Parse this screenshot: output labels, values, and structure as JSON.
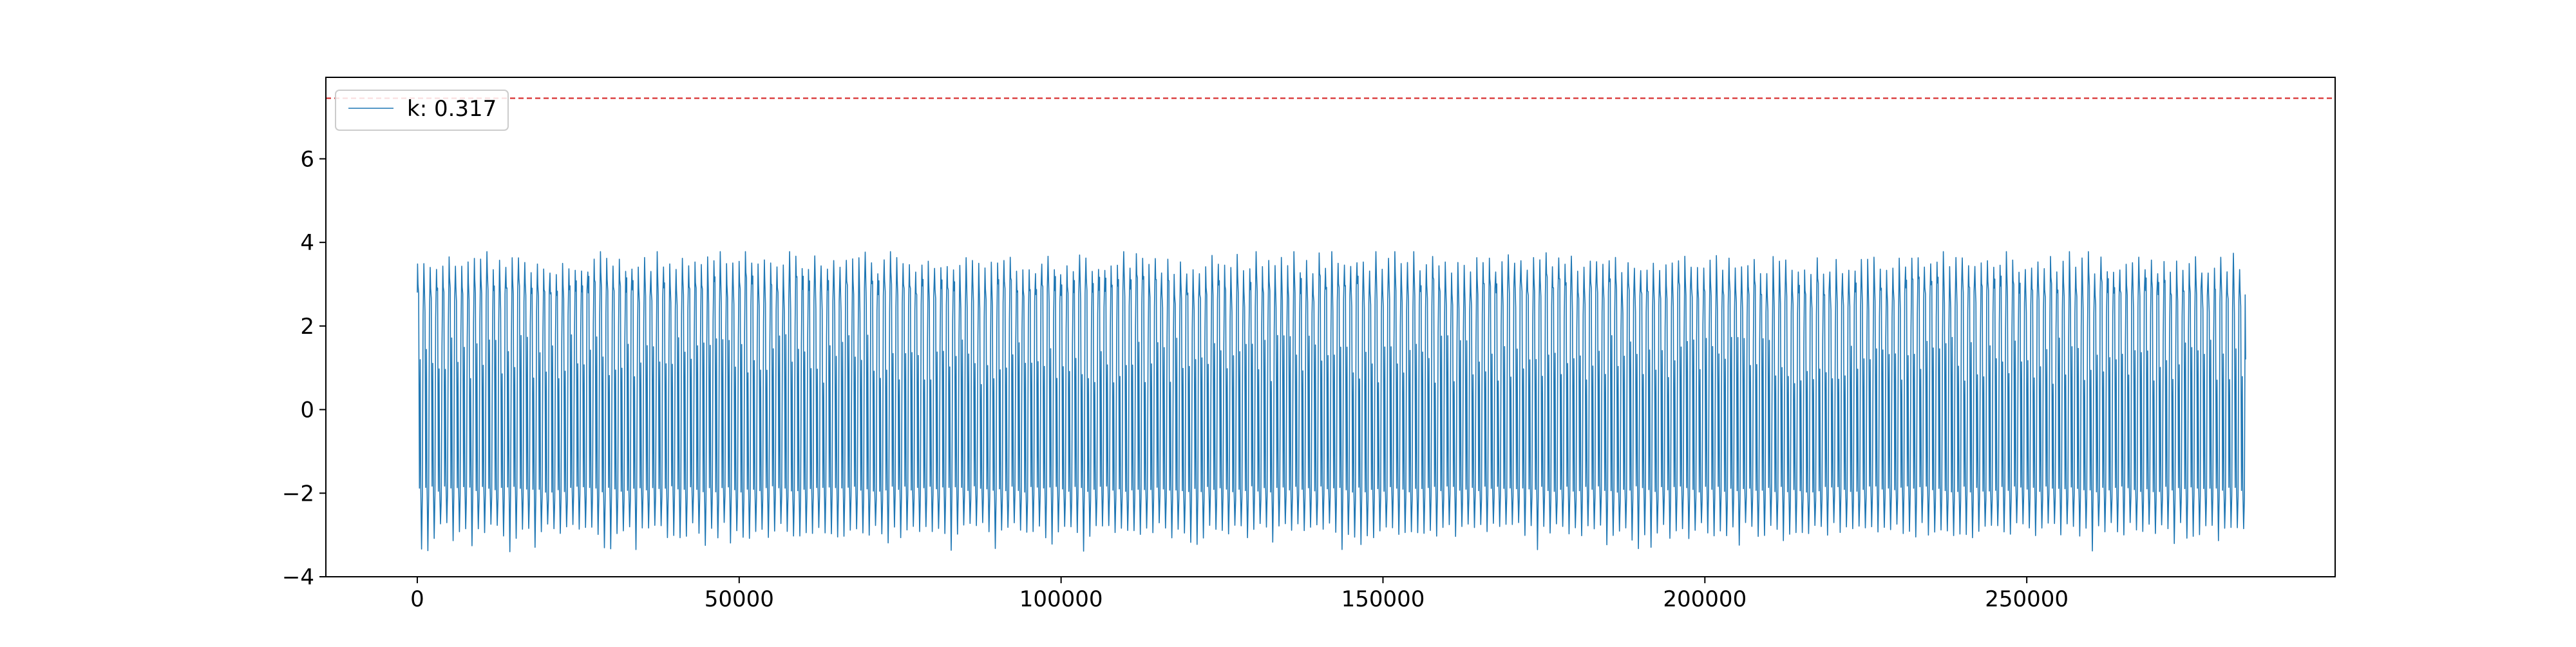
{
  "chart_data": {
    "type": "line",
    "title": "",
    "xlabel": "",
    "ylabel": "",
    "xlim": [
      -14200,
      297900
    ],
    "ylim": [
      -4,
      7.95
    ],
    "x_ticks": [
      0,
      50000,
      100000,
      150000,
      200000,
      250000
    ],
    "x_tick_labels": [
      "0",
      "50000",
      "100000",
      "150000",
      "200000",
      "250000"
    ],
    "y_ticks": [
      -4,
      -2,
      0,
      2,
      4,
      6
    ],
    "y_tick_labels": [
      "−4",
      "−2",
      "0",
      "2",
      "4",
      "6"
    ],
    "grid": false,
    "legend": {
      "placement": "upper-left",
      "entries": [
        "k: 0.317"
      ]
    },
    "series": [
      {
        "name": "k: 0.317",
        "color": "#1f77b4",
        "x_range": [
          0,
          284000
        ],
        "cycle_count": 290,
        "typical_max": 3.45,
        "max_range": [
          3.1,
          3.78
        ],
        "upper_min": -1.9,
        "deep_min_range": [
          -2.7,
          -3.4
        ],
        "start_value": 2.8
      }
    ],
    "reference_line": {
      "y": 7.45,
      "color": "#d62728",
      "style": "dashed"
    }
  }
}
